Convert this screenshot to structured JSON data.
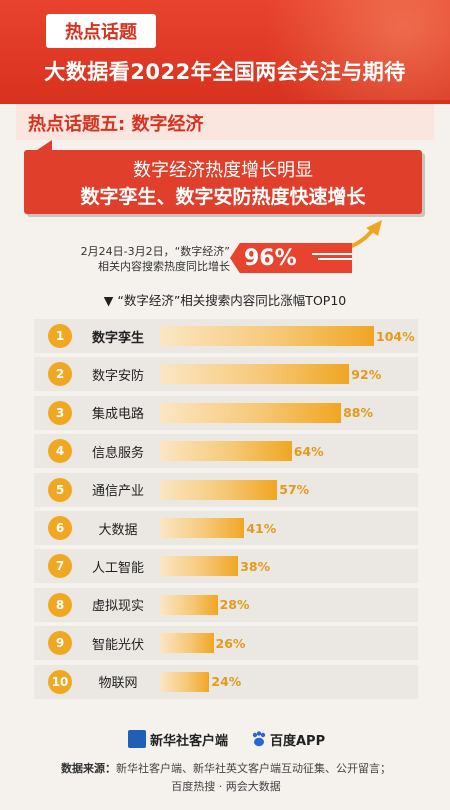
{
  "header": {
    "tag": "热点话题",
    "title": "大数据看2022年全国两会关注与期待"
  },
  "topic": {
    "title": "热点话题五: 数字经济"
  },
  "highlight": {
    "line1": "数字经济热度增长明显",
    "line2": "数字孪生、数字安防热度快速增长"
  },
  "stat": {
    "note_line1": "2月24日-3月2日，“数字经济”",
    "note_line2": "相关内容搜索热度同比增长",
    "value": "96%"
  },
  "chart_data": {
    "type": "bar",
    "orientation": "horizontal",
    "title": "▼ “数字经济”相关搜索内容同比涨幅TOP10",
    "ranks": [
      "1",
      "2",
      "3",
      "4",
      "5",
      "6",
      "7",
      "8",
      "9",
      "10"
    ],
    "categories": [
      "数字孪生",
      "数字安防",
      "集成电路",
      "信息服务",
      "通信产业",
      "大数据",
      "人工智能",
      "虚拟现实",
      "智能光伏",
      "物联网"
    ],
    "values": [
      104,
      92,
      88,
      64,
      57,
      41,
      38,
      28,
      26,
      24
    ],
    "value_labels": [
      "104%",
      "92%",
      "88%",
      "64%",
      "57%",
      "41%",
      "38%",
      "28%",
      "26%",
      "24%"
    ],
    "unit": "%",
    "xlim": [
      0,
      104
    ],
    "colors": {
      "bar_start": "#fbe6c4",
      "bar_end": "#f0a623",
      "badge": "#f0a823",
      "value_text": "#e49a1b"
    }
  },
  "footer": {
    "logo1": "新华社客户端",
    "logo2": "百度APP",
    "source_label": "数据来源：",
    "source_text": "新华社客户端、新华社英文客户端互动征集、公开留言；",
    "source_text2": "百度热搜 · 两会大数据"
  },
  "colors": {
    "primary": "#d8321f",
    "accent": "#f0a623",
    "background": "#f5f2ee"
  }
}
